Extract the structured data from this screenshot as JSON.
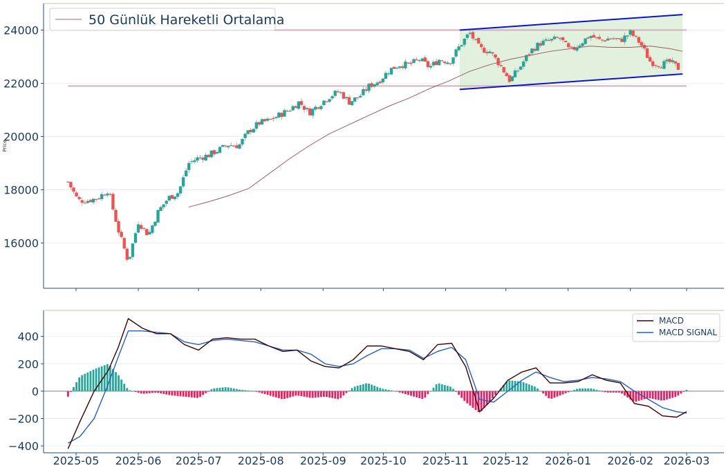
{
  "chart_data": [
    {
      "type": "candlestick",
      "ylabel": "Price",
      "ylim": [
        14300,
        25000
      ],
      "y_ticks": [
        "16000",
        "18000",
        "20000",
        "22000",
        "24000"
      ],
      "y_tick_values": [
        16000,
        18000,
        20000,
        22000,
        24000
      ],
      "colors": {
        "up": "#26a69a",
        "down": "#ef5350",
        "ma": "#9a5a6a",
        "channel": "#0a14c8",
        "channel_fill": "#cfe8c8",
        "level": "#d4b0bc"
      },
      "legend": {
        "label": "50 Günlük Hareketli Ortalama",
        "location": "upper-left"
      },
      "horizontal_levels": [
        24000,
        21900
      ],
      "channel": {
        "start": "2025-11-08",
        "end": "2026-02-27",
        "upper": [
          24000,
          24580
        ],
        "lower": [
          21770,
          22350
        ]
      },
      "grid": true,
      "series": [
        {
          "name": "close",
          "x": [
            "2025-04-27",
            "2025-05-02",
            "2025-05-07",
            "2025-05-12",
            "2025-05-17",
            "2025-05-22",
            "2025-05-27",
            "2025-06-01",
            "2025-06-06",
            "2025-06-11",
            "2025-06-16",
            "2025-06-21",
            "2025-06-26",
            "2025-07-01",
            "2025-07-06",
            "2025-07-11",
            "2025-07-16",
            "2025-07-21",
            "2025-07-26",
            "2025-07-31",
            "2025-08-05",
            "2025-08-10",
            "2025-08-15",
            "2025-08-20",
            "2025-08-25",
            "2025-08-30",
            "2025-09-04",
            "2025-09-09",
            "2025-09-14",
            "2025-09-19",
            "2025-09-24",
            "2025-09-29",
            "2025-10-04",
            "2025-10-09",
            "2025-10-14",
            "2025-10-19",
            "2025-10-24",
            "2025-10-29",
            "2025-11-03",
            "2025-11-08",
            "2025-11-13",
            "2025-11-18",
            "2025-11-23",
            "2025-11-28",
            "2025-12-03",
            "2025-12-08",
            "2025-12-13",
            "2025-12-18",
            "2025-12-23",
            "2025-12-28",
            "2026-01-02",
            "2026-01-07",
            "2026-01-12",
            "2026-01-17",
            "2026-01-22",
            "2026-01-27",
            "2026-02-01",
            "2026-02-06",
            "2026-02-11",
            "2026-02-16",
            "2026-02-21",
            "2026-02-26"
          ],
          "values": [
            18300,
            17600,
            17600,
            17700,
            18000,
            16500,
            15300,
            16800,
            16300,
            17200,
            17700,
            17900,
            19000,
            19200,
            19300,
            19500,
            19700,
            19650,
            20200,
            20500,
            20600,
            20800,
            21000,
            21300,
            20900,
            21200,
            21500,
            21700,
            21300,
            21500,
            21900,
            22100,
            22500,
            22700,
            22700,
            22900,
            22600,
            22900,
            22800,
            23400,
            23900,
            23300,
            23200,
            22700,
            22100,
            22600,
            23200,
            23500,
            23600,
            23700,
            23200,
            23500,
            23800,
            23600,
            23700,
            23600,
            23900,
            23500,
            22800,
            22700,
            22800,
            22500
          ]
        },
        {
          "name": "50 Günlük Hareketli Ortalama",
          "x": [
            "2025-06-26",
            "2025-07-06",
            "2025-07-16",
            "2025-07-26",
            "2025-08-05",
            "2025-08-15",
            "2025-08-25",
            "2025-09-04",
            "2025-09-14",
            "2025-09-24",
            "2025-10-04",
            "2025-10-14",
            "2025-10-24",
            "2025-11-03",
            "2025-11-13",
            "2025-11-23",
            "2025-12-03",
            "2025-12-13",
            "2025-12-23",
            "2026-01-02",
            "2026-01-12",
            "2026-01-22",
            "2026-02-01",
            "2026-02-11",
            "2026-02-21",
            "2026-02-27"
          ],
          "values": [
            17350,
            17550,
            17780,
            18050,
            18600,
            19150,
            19650,
            20100,
            20450,
            20800,
            21150,
            21450,
            21800,
            22100,
            22450,
            22700,
            22900,
            23050,
            23200,
            23300,
            23400,
            23350,
            23350,
            23400,
            23300,
            23200
          ]
        }
      ]
    },
    {
      "type": "line+bar",
      "ylim": [
        -450,
        590
      ],
      "y_ticks": [
        "−400",
        "−200",
        "0",
        "200",
        "400"
      ],
      "y_tick_values": [
        -400,
        -200,
        0,
        200,
        400
      ],
      "x_ticks": [
        "2025-05",
        "2025-06",
        "2025-07",
        "2025-08",
        "2025-09",
        "2025-10",
        "2025-11",
        "2025-12",
        "2026-01",
        "2026-02",
        "2026-03"
      ],
      "x_tick_dates": [
        "2025-05-01",
        "2025-06-01",
        "2025-07-01",
        "2025-08-01",
        "2025-09-01",
        "2025-10-01",
        "2025-11-01",
        "2025-12-01",
        "2026-01-01",
        "2026-02-01",
        "2026-03-01"
      ],
      "legend": {
        "entries": [
          "MACD",
          "MACD SIGNAL"
        ],
        "location": "upper-right"
      },
      "colors": {
        "macd": "#3a0000",
        "signal": "#1f5fbf",
        "hist_pos": "#26a69a",
        "hist_neg": "#e91e63",
        "zero": "#7f7f7f"
      },
      "grid": true,
      "series": [
        {
          "name": "MACD",
          "x": [
            "2025-04-27",
            "2025-05-03",
            "2025-05-10",
            "2025-05-17",
            "2025-05-22",
            "2025-05-27",
            "2025-06-03",
            "2025-06-10",
            "2025-06-17",
            "2025-06-24",
            "2025-07-01",
            "2025-07-08",
            "2025-07-15",
            "2025-07-22",
            "2025-07-29",
            "2025-08-05",
            "2025-08-12",
            "2025-08-19",
            "2025-08-26",
            "2025-09-02",
            "2025-09-09",
            "2025-09-16",
            "2025-09-23",
            "2025-09-30",
            "2025-10-07",
            "2025-10-14",
            "2025-10-21",
            "2025-10-28",
            "2025-11-04",
            "2025-11-11",
            "2025-11-18",
            "2025-11-25",
            "2025-12-02",
            "2025-12-09",
            "2025-12-16",
            "2025-12-23",
            "2025-12-30",
            "2026-01-06",
            "2026-01-13",
            "2026-01-20",
            "2026-01-27",
            "2026-02-03",
            "2026-02-10",
            "2026-02-17",
            "2026-02-24",
            "2026-03-01"
          ],
          "values": [
            -420,
            -220,
            0,
            150,
            320,
            530,
            460,
            420,
            420,
            340,
            300,
            380,
            390,
            380,
            380,
            330,
            290,
            300,
            220,
            180,
            170,
            230,
            330,
            330,
            310,
            290,
            230,
            340,
            350,
            180,
            -150,
            -50,
            80,
            140,
            170,
            60,
            60,
            70,
            120,
            80,
            60,
            -90,
            -110,
            -180,
            -190,
            -150
          ]
        },
        {
          "name": "MACD SIGNAL",
          "x": [
            "2025-04-27",
            "2025-05-03",
            "2025-05-10",
            "2025-05-17",
            "2025-05-22",
            "2025-05-27",
            "2025-06-03",
            "2025-06-10",
            "2025-06-17",
            "2025-06-24",
            "2025-07-01",
            "2025-07-08",
            "2025-07-15",
            "2025-07-22",
            "2025-07-29",
            "2025-08-05",
            "2025-08-12",
            "2025-08-19",
            "2025-08-26",
            "2025-09-02",
            "2025-09-09",
            "2025-09-16",
            "2025-09-23",
            "2025-09-30",
            "2025-10-07",
            "2025-10-14",
            "2025-10-21",
            "2025-10-28",
            "2025-11-04",
            "2025-11-11",
            "2025-11-18",
            "2025-11-25",
            "2025-12-02",
            "2025-12-09",
            "2025-12-16",
            "2025-12-23",
            "2025-12-30",
            "2026-01-06",
            "2026-01-13",
            "2026-01-20",
            "2026-01-27",
            "2026-02-03",
            "2026-02-10",
            "2026-02-17",
            "2026-02-24",
            "2026-03-01"
          ],
          "values": [
            -380,
            -330,
            -200,
            50,
            250,
            440,
            440,
            430,
            420,
            360,
            340,
            370,
            380,
            370,
            360,
            330,
            300,
            300,
            270,
            200,
            180,
            200,
            260,
            310,
            310,
            300,
            240,
            290,
            320,
            230,
            -60,
            -80,
            0,
            80,
            140,
            100,
            70,
            80,
            100,
            90,
            70,
            0,
            -60,
            -120,
            -150,
            -160
          ]
        },
        {
          "name": "histogram",
          "x": [
            "2025-04-27",
            "2025-05-03",
            "2025-05-10",
            "2025-05-17",
            "2025-05-22",
            "2025-05-27",
            "2025-06-03",
            "2025-06-10",
            "2025-06-17",
            "2025-06-24",
            "2025-07-01",
            "2025-07-08",
            "2025-07-15",
            "2025-07-22",
            "2025-07-29",
            "2025-08-05",
            "2025-08-12",
            "2025-08-19",
            "2025-08-26",
            "2025-09-02",
            "2025-09-09",
            "2025-09-16",
            "2025-09-23",
            "2025-09-30",
            "2025-10-07",
            "2025-10-14",
            "2025-10-21",
            "2025-10-28",
            "2025-11-04",
            "2025-11-11",
            "2025-11-18",
            "2025-11-25",
            "2025-12-02",
            "2025-12-09",
            "2025-12-16",
            "2025-12-23",
            "2025-12-30",
            "2026-01-06",
            "2026-01-13",
            "2026-01-20",
            "2026-01-27",
            "2026-02-03",
            "2026-02-10",
            "2026-02-17",
            "2026-02-24",
            "2026-03-01"
          ],
          "values": [
            -40,
            110,
            160,
            200,
            120,
            10,
            -20,
            -10,
            -30,
            -40,
            -50,
            20,
            30,
            10,
            0,
            -30,
            -60,
            -30,
            -50,
            -40,
            -60,
            30,
            60,
            20,
            0,
            -30,
            -60,
            60,
            30,
            -80,
            -160,
            -40,
            80,
            70,
            30,
            -60,
            -20,
            20,
            20,
            -10,
            -10,
            -80,
            -50,
            -70,
            -40,
            10
          ]
        }
      ]
    }
  ]
}
